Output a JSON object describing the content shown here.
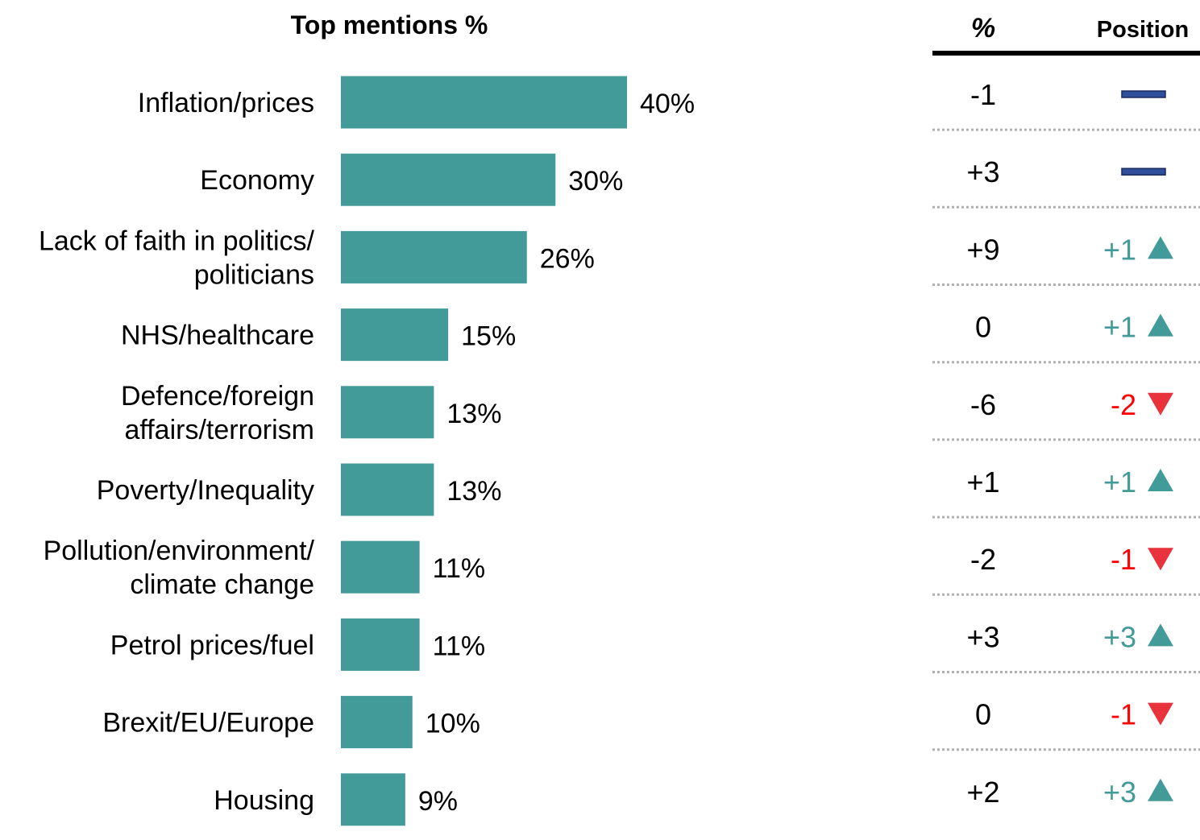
{
  "chart_data": {
    "type": "bar",
    "orientation": "horizontal",
    "title": "Top mentions %",
    "categories": [
      [
        "Inflation/prices"
      ],
      [
        "Economy"
      ],
      [
        "Lack of faith in politics/",
        "politicians"
      ],
      [
        "NHS/healthcare"
      ],
      [
        "Defence/foreign",
        "affairs/terrorism"
      ],
      [
        "Poverty/Inequality"
      ],
      [
        "Pollution/environment/",
        "climate change"
      ],
      [
        "Petrol prices/fuel"
      ],
      [
        "Brexit/EU/Europe"
      ],
      [
        "Housing"
      ]
    ],
    "values": [
      40,
      30,
      26,
      15,
      13,
      13,
      11,
      11,
      10,
      9
    ],
    "value_labels": [
      "40%",
      "30%",
      "26%",
      "15%",
      "13%",
      "13%",
      "11%",
      "11%",
      "10%",
      "9%"
    ],
    "xlim": [
      0,
      40
    ],
    "bar_color": "#429a99",
    "grid": false,
    "legend": "none"
  },
  "table": {
    "change_header": "%",
    "position_header": "Position",
    "rows": [
      {
        "change": "-1",
        "position": "",
        "direction": "same"
      },
      {
        "change": "+3",
        "position": "",
        "direction": "same"
      },
      {
        "change": "+9",
        "position": "+1",
        "direction": "up"
      },
      {
        "change": "0",
        "position": "+1",
        "direction": "up"
      },
      {
        "change": "-6",
        "position": "-2",
        "direction": "down"
      },
      {
        "change": "+1",
        "position": "+1",
        "direction": "up"
      },
      {
        "change": "-2",
        "position": "-1",
        "direction": "down"
      },
      {
        "change": "+3",
        "position": "+3",
        "direction": "up"
      },
      {
        "change": "0",
        "position": "-1",
        "direction": "down"
      },
      {
        "change": "+2",
        "position": "+3",
        "direction": "up"
      }
    ]
  },
  "colors": {
    "up": "#429a99",
    "down": "#e8323c",
    "down_text": "#ff0000",
    "same": "#2f4f9a",
    "same_border": "#1a2a5e",
    "divider": "#b0b0b0",
    "header_rule": "#000000"
  },
  "icons": {
    "up": "triangle-up-icon",
    "down": "triangle-down-icon",
    "same": "dash-icon"
  }
}
